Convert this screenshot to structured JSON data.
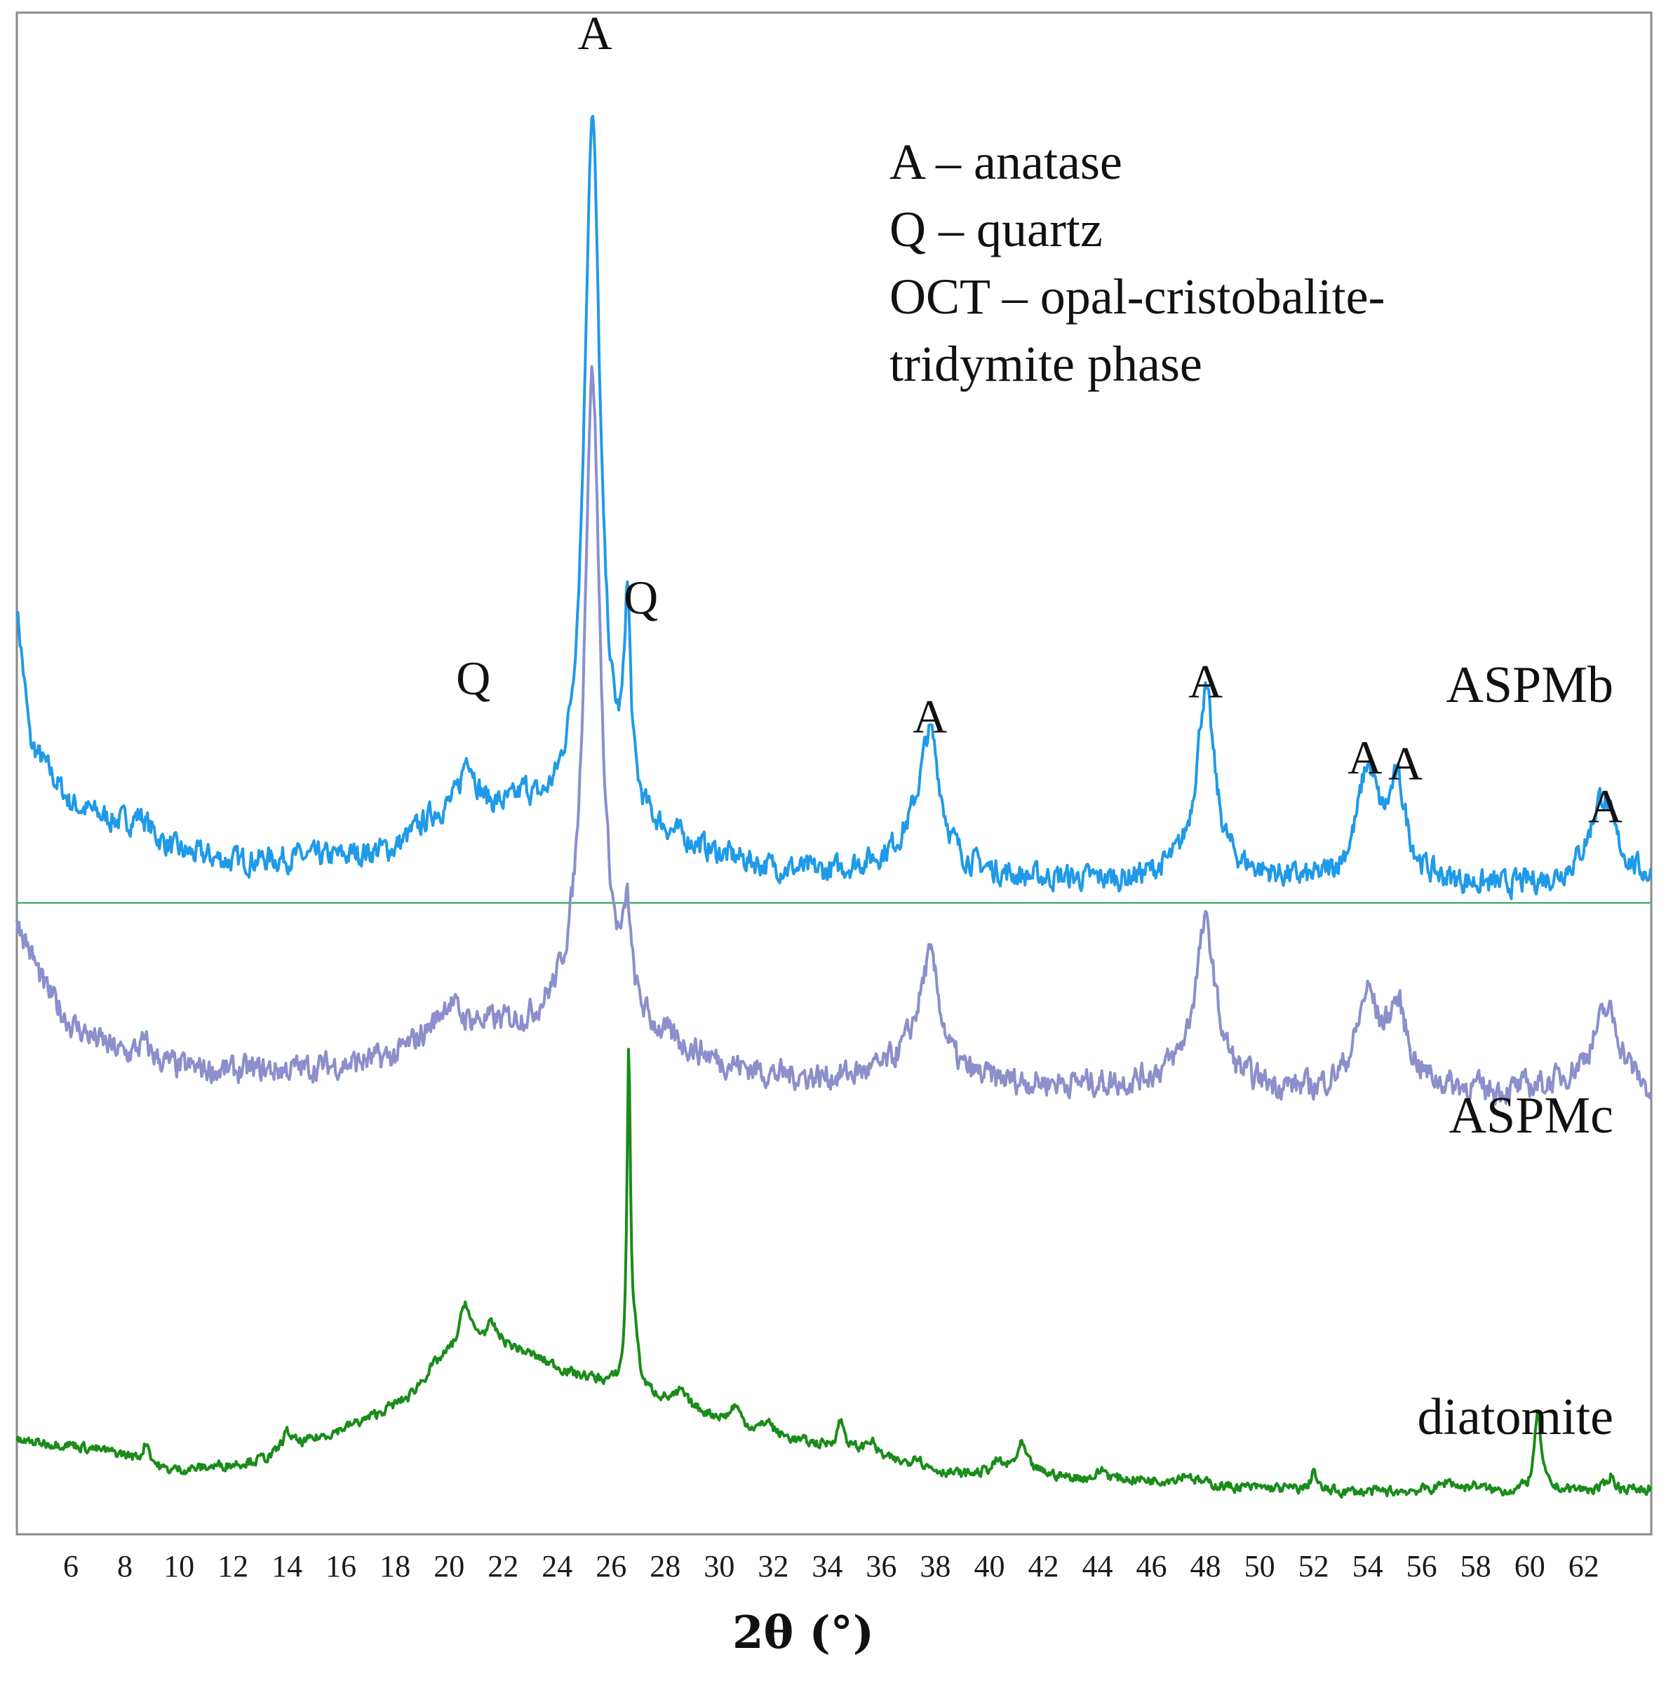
{
  "chart_data": {
    "type": "line",
    "title": "",
    "xlabel": "2θ (°)",
    "ylabel": "",
    "xlim": [
      4,
      64.5
    ],
    "ylim": [
      0,
      100
    ],
    "grid": false,
    "x_ticks": [
      6,
      8,
      10,
      12,
      14,
      16,
      18,
      20,
      22,
      24,
      26,
      28,
      30,
      32,
      34,
      36,
      38,
      40,
      42,
      44,
      46,
      48,
      50,
      52,
      54,
      56,
      58,
      60,
      62
    ],
    "separator_line": {
      "y": 41.5,
      "color": "#4caf6a"
    },
    "legend": [
      "A – anatase",
      "Q – quartz",
      "OCT – opal-cristobalite-",
      "tridymite phase"
    ],
    "series": [
      {
        "name": "ASPMb",
        "color": "#1f9ae8",
        "baseline": [
          [
            4,
            61
          ],
          [
            4.5,
            52
          ],
          [
            6,
            48
          ],
          [
            8,
            46.5
          ],
          [
            10,
            44.8
          ],
          [
            12,
            44.2
          ],
          [
            14,
            44.4
          ],
          [
            16,
            44.5
          ],
          [
            18,
            45
          ],
          [
            19.5,
            47.2
          ],
          [
            21,
            47.6
          ],
          [
            23.5,
            47
          ],
          [
            24.6,
            47.5
          ],
          [
            25.2,
            48.2
          ],
          [
            26.4,
            47.2
          ],
          [
            27.5,
            46
          ],
          [
            30,
            44.5
          ],
          [
            32,
            43.7
          ],
          [
            34,
            43.4
          ],
          [
            36,
            44.2
          ],
          [
            37.2,
            45.2
          ],
          [
            39,
            43.7
          ],
          [
            41,
            43.1
          ],
          [
            45,
            42.9
          ],
          [
            47.5,
            43.6
          ],
          [
            49.5,
            43.3
          ],
          [
            52,
            42.7
          ],
          [
            53.5,
            43.1
          ],
          [
            55,
            43.2
          ],
          [
            56.5,
            42.8
          ],
          [
            59,
            42.5
          ],
          [
            61,
            42.9
          ],
          [
            62.5,
            44
          ],
          [
            64,
            43.2
          ],
          [
            64.5,
            43
          ]
        ],
        "peaks": [
          {
            "x": 8.6,
            "h": 1.2,
            "w": 0.4
          },
          {
            "x": 20.7,
            "h": 3.4,
            "w": 0.3
          },
          {
            "x": 22.8,
            "h": 1.0,
            "w": 0.3
          },
          {
            "x": 25.3,
            "h": 45,
            "w": 0.35
          },
          {
            "x": 26.6,
            "h": 12.5,
            "w": 0.14
          },
          {
            "x": 37.8,
            "h": 8.0,
            "w": 0.45
          },
          {
            "x": 48.0,
            "h": 11.8,
            "w": 0.4
          },
          {
            "x": 54.0,
            "h": 6.8,
            "w": 0.45
          },
          {
            "x": 55.1,
            "h": 5.6,
            "w": 0.4
          },
          {
            "x": 62.7,
            "h": 4.6,
            "w": 0.5
          }
        ],
        "noise": 0.7
      },
      {
        "name": "ASPMc",
        "color": "#8b8fcb",
        "baseline": [
          [
            4,
            40.5
          ],
          [
            5,
            36
          ],
          [
            6,
            33.5
          ],
          [
            8,
            31.3
          ],
          [
            10,
            30.6
          ],
          [
            12,
            30.4
          ],
          [
            14,
            30.5
          ],
          [
            16,
            30.8
          ],
          [
            18,
            31.3
          ],
          [
            19.5,
            33.2
          ],
          [
            21,
            33.4
          ],
          [
            23,
            33.3
          ],
          [
            24.6,
            34.5
          ],
          [
            26.4,
            34
          ],
          [
            27.5,
            32.6
          ],
          [
            30,
            30.9
          ],
          [
            32,
            30.1
          ],
          [
            34,
            29.9
          ],
          [
            36,
            30.3
          ],
          [
            37.2,
            31.3
          ],
          [
            39,
            29.9
          ],
          [
            41,
            29.6
          ],
          [
            45,
            29.5
          ],
          [
            47.5,
            30.2
          ],
          [
            49.5,
            29.4
          ],
          [
            52,
            29
          ],
          [
            53.5,
            29.6
          ],
          [
            55,
            29.5
          ],
          [
            56.5,
            29.3
          ],
          [
            59,
            29
          ],
          [
            61,
            29.5
          ],
          [
            62.5,
            30.5
          ],
          [
            64,
            29.3
          ],
          [
            64.5,
            28.5
          ]
        ],
        "peaks": [
          {
            "x": 8.7,
            "h": 1.1,
            "w": 0.4
          },
          {
            "x": 20.0,
            "h": 1.6,
            "w": 0.35
          },
          {
            "x": 25.3,
            "h": 42,
            "w": 0.35
          },
          {
            "x": 26.6,
            "h": 5.5,
            "w": 0.15
          },
          {
            "x": 37.8,
            "h": 7.0,
            "w": 0.45
          },
          {
            "x": 48.0,
            "h": 10.0,
            "w": 0.45
          },
          {
            "x": 54.0,
            "h": 5.5,
            "w": 0.45
          },
          {
            "x": 55.1,
            "h": 4.8,
            "w": 0.45
          },
          {
            "x": 62.9,
            "h": 4.2,
            "w": 0.55
          }
        ],
        "noise": 0.75
      },
      {
        "name": "diatomite",
        "color": "#1a8c1a",
        "baseline": [
          [
            4,
            6.1
          ],
          [
            6,
            5.9
          ],
          [
            8,
            5.2
          ],
          [
            9.5,
            4.2
          ],
          [
            10.5,
            4.3
          ],
          [
            12,
            4.6
          ],
          [
            13.5,
            5.0
          ],
          [
            15,
            6.2
          ],
          [
            17,
            7.6
          ],
          [
            18.5,
            9.0
          ],
          [
            19.5,
            11.2
          ],
          [
            20.5,
            12.6
          ],
          [
            21.5,
            12.9
          ],
          [
            23,
            11.8
          ],
          [
            24.5,
            10.6
          ],
          [
            26,
            9.9
          ],
          [
            27.5,
            9.2
          ],
          [
            29,
            8.3
          ],
          [
            31,
            7.0
          ],
          [
            33,
            6.1
          ],
          [
            35,
            5.4
          ],
          [
            37,
            4.5
          ],
          [
            39,
            3.9
          ],
          [
            41,
            4.3
          ],
          [
            43,
            3.7
          ],
          [
            45,
            3.6
          ],
          [
            47,
            3.5
          ],
          [
            49,
            3.1
          ],
          [
            51,
            3.0
          ],
          [
            53,
            2.8
          ],
          [
            55,
            2.8
          ],
          [
            57,
            3.0
          ],
          [
            59,
            2.8
          ],
          [
            61,
            2.9
          ],
          [
            63,
            2.9
          ],
          [
            64.5,
            3.0
          ]
        ],
        "peaks": [
          {
            "x": 8.8,
            "h": 1.4,
            "w": 0.15
          },
          {
            "x": 14.0,
            "h": 1.3,
            "w": 0.25
          },
          {
            "x": 20.6,
            "h": 2.6,
            "w": 0.2
          },
          {
            "x": 21.6,
            "h": 0.8,
            "w": 0.25
          },
          {
            "x": 26.65,
            "h": 22.0,
            "w": 0.08
          },
          {
            "x": 26.9,
            "h": 3.0,
            "w": 0.12
          },
          {
            "x": 28.6,
            "h": 0.8,
            "w": 0.2
          },
          {
            "x": 30.6,
            "h": 1.2,
            "w": 0.2
          },
          {
            "x": 31.8,
            "h": 0.8,
            "w": 0.2
          },
          {
            "x": 34.5,
            "h": 1.8,
            "w": 0.18
          },
          {
            "x": 35.6,
            "h": 1.0,
            "w": 0.25
          },
          {
            "x": 37.3,
            "h": 0.8,
            "w": 0.2
          },
          {
            "x": 40.3,
            "h": 0.6,
            "w": 0.2
          },
          {
            "x": 41.2,
            "h": 1.6,
            "w": 0.2
          },
          {
            "x": 44.2,
            "h": 0.6,
            "w": 0.2
          },
          {
            "x": 47.3,
            "h": 0.5,
            "w": 0.3
          },
          {
            "x": 52.0,
            "h": 1.5,
            "w": 0.1
          },
          {
            "x": 57.0,
            "h": 0.5,
            "w": 0.25
          },
          {
            "x": 58.0,
            "h": 0.3,
            "w": 0.25
          },
          {
            "x": 60.3,
            "h": 5.0,
            "w": 0.15
          },
          {
            "x": 63.0,
            "h": 1.0,
            "w": 0.15
          }
        ],
        "noise": 0.28
      }
    ],
    "annotations": [
      {
        "text": "A",
        "x": 25.4,
        "y": 97.6
      },
      {
        "text": "Q",
        "x": 27.1,
        "y": 60.5
      },
      {
        "text": "Q",
        "x": 20.9,
        "y": 55.2
      },
      {
        "text": "A",
        "x": 37.8,
        "y": 52.7
      },
      {
        "text": "A",
        "x": 48.0,
        "y": 55.0
      },
      {
        "text": "A",
        "x": 53.9,
        "y": 50.0
      },
      {
        "text": "A",
        "x": 55.4,
        "y": 49.6
      },
      {
        "text": "A",
        "x": 62.8,
        "y": 46.8
      }
    ]
  }
}
